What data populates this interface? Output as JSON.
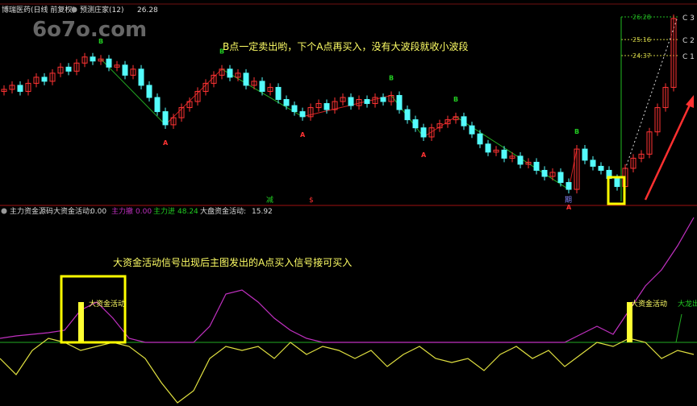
{
  "header": {
    "stock": "博瑞医药(日线 前复权)",
    "indicator": "预测庄家(12)",
    "value": "26.28"
  },
  "watermark": "6o7o.com",
  "annotations": {
    "top": "B点一定卖出哟，下个A点再买入，没有大波段就收小波段",
    "bottom": "大资金活动信号出现后主图发出的A点买入信号接可买入",
    "signal_label_1": "大资金活动",
    "signal_label_2": "大资金活动",
    "signal_label_3": "大龙出"
  },
  "levels": [
    {
      "value": "26.28",
      "tag": "C 3"
    },
    {
      "value": "25.16",
      "tag": "C 2"
    },
    {
      "value": "24.37",
      "tag": "C 1"
    }
  ],
  "sub_header": {
    "name": "主力资金源码",
    "big_label": "大资金活动:",
    "big_value": "0.00",
    "main_out_label": "主力撤",
    "main_out_value": "0.00",
    "main_in_label": "主力进",
    "main_in_value": "48.24",
    "market_label": "大盘资金活动:",
    "market_value": "15.92"
  },
  "markers": {
    "a": "A",
    "b": "B",
    "bottom_1": "减",
    "bottom_2": "$",
    "bottom_3": "期"
  },
  "colors": {
    "up": "#ff3333",
    "down": "#54fcfc",
    "green": "#22bb22",
    "yellow": "#ffff33",
    "magenta": "#c030c0",
    "red": "#ff2020"
  },
  "chart_data": [
    {
      "type": "candlestick",
      "title": "",
      "price_levels": [
        26.28,
        25.16,
        24.37
      ],
      "closes": [
        22.7,
        22.9,
        22.6,
        23.0,
        23.3,
        23.1,
        23.5,
        23.8,
        23.6,
        24.0,
        24.3,
        24.1,
        24.2,
        23.8,
        23.9,
        23.4,
        23.7,
        22.9,
        22.3,
        21.6,
        20.95,
        21.3,
        21.8,
        22.1,
        22.6,
        23.0,
        23.4,
        23.7,
        23.3,
        23.5,
        22.9,
        23.1,
        22.6,
        22.8,
        22.2,
        21.9,
        21.6,
        21.35,
        21.8,
        22.0,
        21.7,
        22.1,
        22.3,
        21.9,
        22.2,
        22.0,
        22.3,
        22.1,
        22.4,
        21.7,
        21.2,
        20.8,
        20.35,
        20.8,
        21.0,
        21.2,
        21.35,
        20.9,
        20.5,
        20.0,
        19.6,
        19.7,
        19.3,
        19.4,
        19.0,
        19.1,
        18.7,
        18.4,
        18.6,
        18.1,
        17.76,
        19.75,
        19.2,
        18.9,
        18.7,
        18.3,
        17.9,
        18.8,
        19.3,
        19.5,
        20.6,
        21.8,
        22.8,
        26.2
      ],
      "signals": [
        {
          "i": 12,
          "type": "B"
        },
        {
          "i": 20,
          "type": "A"
        },
        {
          "i": 27,
          "type": "B"
        },
        {
          "i": 37,
          "type": "A"
        },
        {
          "i": 48,
          "type": "B"
        },
        {
          "i": 52,
          "type": "A"
        },
        {
          "i": 56,
          "type": "B"
        },
        {
          "i": 70,
          "type": "A"
        },
        {
          "i": 71,
          "type": "B"
        }
      ]
    },
    {
      "type": "line",
      "title": "",
      "series": [
        {
          "color": "#c030c0",
          "values": [
            5,
            8,
            10,
            12,
            15,
            40,
            50,
            30,
            5,
            0,
            0,
            0,
            0,
            20,
            60,
            65,
            50,
            30,
            15,
            5,
            0,
            0,
            0,
            0,
            0,
            0,
            0,
            0,
            0,
            0,
            0,
            0,
            0,
            0,
            0,
            0,
            10,
            20,
            10,
            40,
            70,
            90,
            120,
            155
          ]
        },
        {
          "color": "#e0e040",
          "values": [
            -20,
            -40,
            -10,
            5,
            0,
            -10,
            -5,
            0,
            -5,
            -20,
            -50,
            -75,
            -60,
            -20,
            -5,
            -10,
            -5,
            -20,
            0,
            -15,
            -5,
            -10,
            -20,
            -10,
            -30,
            -15,
            -5,
            -20,
            -25,
            -20,
            -35,
            -15,
            -5,
            -20,
            -10,
            -30,
            -15,
            0,
            -5,
            5,
            0,
            -20,
            -10,
            -15
          ]
        }
      ],
      "bars": [
        {
          "i": 5,
          "value": 50
        },
        {
          "i": 39,
          "value": 50
        }
      ]
    }
  ]
}
